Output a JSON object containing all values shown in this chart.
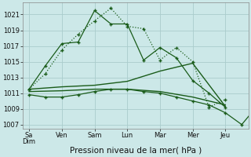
{
  "xlabel": "Pression niveau de la mer( hPa )",
  "background_color": "#cce8e8",
  "grid_color": "#aacccc",
  "line_color": "#1a5c1a",
  "ylim": [
    1006.5,
    1022.5
  ],
  "yticks": [
    1007,
    1009,
    1011,
    1013,
    1015,
    1017,
    1019,
    1021
  ],
  "x_labels": [
    "Sa\nDim",
    "Ven",
    "Sam",
    "Lun",
    "Mar",
    "Mer",
    "Jeu"
  ],
  "x_positions": [
    0,
    1,
    2,
    3,
    4,
    5,
    6
  ],
  "line1_x": [
    0,
    0.5,
    1,
    1.5,
    2,
    2.5,
    3,
    3.5,
    4,
    4.5,
    5,
    5.5,
    6
  ],
  "line1_y": [
    1011.5,
    1013.5,
    1016.5,
    1018.5,
    1020.2,
    1021.8,
    1019.5,
    1019.2,
    1015.2,
    1016.8,
    1015.0,
    1009.2,
    1010.2
  ],
  "line1_style": "dotted",
  "line1_marker": true,
  "line2_x": [
    0,
    0.5,
    1,
    1.5,
    2,
    2.5,
    3,
    3.5,
    4,
    4.5,
    5,
    5.5,
    6
  ],
  "line2_y": [
    1011.5,
    1014.5,
    1017.3,
    1017.5,
    1021.5,
    1019.8,
    1019.8,
    1015.2,
    1016.8,
    1015.5,
    1012.6,
    1011.0,
    1009.2
  ],
  "line2_style": "solid",
  "line2_marker": true,
  "line3_x": [
    0,
    1,
    2,
    3,
    4,
    5,
    6
  ],
  "line3_y": [
    1011.5,
    1011.8,
    1012.0,
    1012.5,
    1013.8,
    1014.8,
    1009.3
  ],
  "line3_style": "solid",
  "line3_marker": false,
  "line4_x": [
    0,
    1,
    2,
    3,
    4,
    5,
    6
  ],
  "line4_y": [
    1011.2,
    1011.3,
    1011.5,
    1011.5,
    1011.2,
    1010.5,
    1009.5
  ],
  "line4_style": "solid",
  "line4_marker": false,
  "line5_x": [
    0,
    0.5,
    1,
    1.5,
    2,
    2.5,
    3,
    3.5,
    4,
    4.5,
    5,
    5.5,
    6,
    6.5,
    7
  ],
  "line5_y": [
    1010.8,
    1010.5,
    1010.5,
    1010.8,
    1011.2,
    1011.5,
    1011.5,
    1011.2,
    1011.0,
    1010.5,
    1010.0,
    1009.5,
    1008.5,
    1007.0,
    1009.5
  ],
  "line5_style": "solid",
  "line5_marker": true
}
